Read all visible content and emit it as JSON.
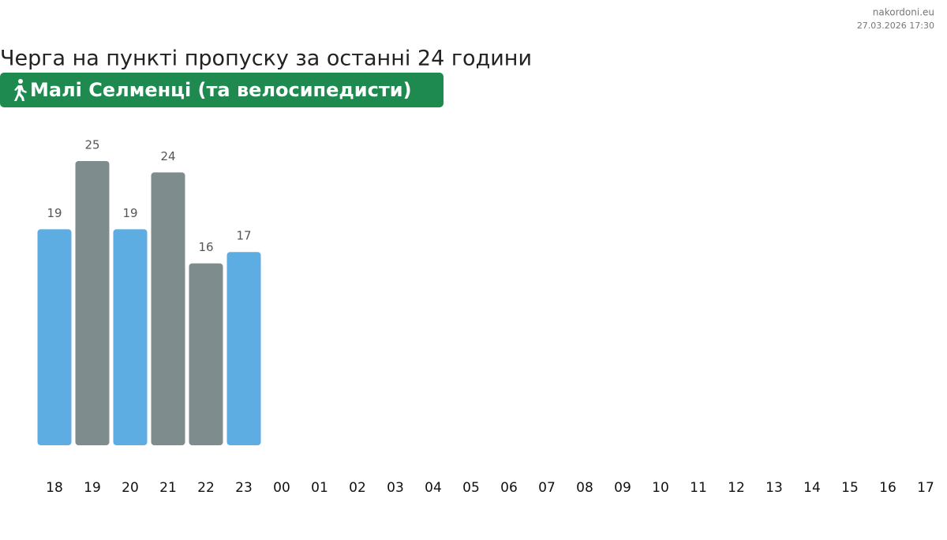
{
  "site": "nakordoni.eu",
  "timestamp": "27.03.2026 17:30",
  "chart_data": {
    "type": "bar",
    "title": "Черга на пункті пропуску за останні 24 години",
    "subtitle": "Малі Селменці (та велосипедисти)",
    "categories": [
      "18",
      "19",
      "20",
      "21",
      "22",
      "23",
      "00",
      "01",
      "02",
      "03",
      "04",
      "05",
      "06",
      "07",
      "08",
      "09",
      "10",
      "11",
      "12",
      "13",
      "14",
      "15",
      "16",
      "17"
    ],
    "values": [
      19,
      25,
      19,
      24,
      16,
      17,
      null,
      null,
      null,
      null,
      null,
      null,
      null,
      null,
      null,
      null,
      null,
      null,
      null,
      null,
      null,
      null,
      null,
      null
    ],
    "colors": [
      "#5dade2",
      "#7f8c8d",
      "#5dade2",
      "#7f8c8d",
      "#7f8c8d",
      "#5dade2",
      null,
      null,
      null,
      null,
      null,
      null,
      null,
      null,
      null,
      null,
      null,
      null,
      null,
      null,
      null,
      null,
      null,
      null
    ],
    "badge_color": "#1e8a4f"
  }
}
